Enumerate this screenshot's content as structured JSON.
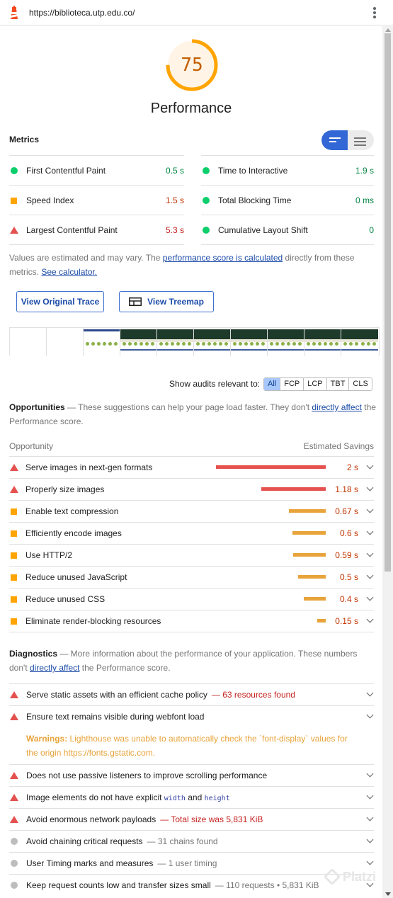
{
  "browser": {
    "url": "https://biblioteca.utp.edu.co/",
    "logo_icon": "lighthouse-icon",
    "menu_icon": "kebab-menu-icon"
  },
  "score": {
    "value": "75",
    "fraction": 0.75,
    "color": "#ffa400",
    "title": "Performance"
  },
  "metrics": {
    "heading": "Metrics",
    "left": [
      {
        "label": "First Contentful Paint",
        "value": "0.5 s",
        "status": "pass"
      },
      {
        "label": "Speed Index",
        "value": "1.5 s",
        "status": "average"
      },
      {
        "label": "Largest Contentful Paint",
        "value": "5.3 s",
        "status": "fail"
      }
    ],
    "right": [
      {
        "label": "Time to Interactive",
        "value": "1.9 s",
        "status": "pass"
      },
      {
        "label": "Total Blocking Time",
        "value": "0 ms",
        "status": "pass"
      },
      {
        "label": "Cumulative Layout Shift",
        "value": "0",
        "status": "pass"
      }
    ]
  },
  "note": {
    "text1": "Values are estimated and may vary. The ",
    "link1": "performance score is calculated",
    "text2": " directly from these metrics. ",
    "link2": "See calculator."
  },
  "buttons": {
    "trace": "View Original Trace",
    "treemap": "View Treemap"
  },
  "filter": {
    "label": "Show audits relevant to:",
    "chips": [
      "All",
      "FCP",
      "LCP",
      "TBT",
      "CLS"
    ],
    "active": "All"
  },
  "opportunities": {
    "title": "Opportunities",
    "desc1": " — These suggestions can help your page load faster. They don't ",
    "link": "directly affect",
    "desc2": " the Performance score.",
    "col_left": "Opportunity",
    "col_right": "Estimated Savings",
    "items": [
      {
        "label": "Serve images in next-gen formats",
        "savings": "2 s",
        "seconds": 2,
        "status": "fail"
      },
      {
        "label": "Properly size images",
        "savings": "1.18 s",
        "seconds": 1.18,
        "status": "fail"
      },
      {
        "label": "Enable text compression",
        "savings": "0.67 s",
        "seconds": 0.67,
        "status": "average"
      },
      {
        "label": "Efficiently encode images",
        "savings": "0.6 s",
        "seconds": 0.6,
        "status": "average"
      },
      {
        "label": "Use HTTP/2",
        "savings": "0.59 s",
        "seconds": 0.59,
        "status": "average"
      },
      {
        "label": "Reduce unused JavaScript",
        "savings": "0.5 s",
        "seconds": 0.5,
        "status": "average"
      },
      {
        "label": "Reduce unused CSS",
        "savings": "0.4 s",
        "seconds": 0.4,
        "status": "average"
      },
      {
        "label": "Eliminate render-blocking resources",
        "savings": "0.15 s",
        "seconds": 0.15,
        "status": "average"
      }
    ]
  },
  "diagnostics": {
    "title": "Diagnostics",
    "desc1": " — More information about the performance of your application. These numbers don't ",
    "link": "directly affect",
    "desc2": " the Performance score.",
    "items": [
      {
        "label": "Serve static assets with an efficient cache policy",
        "extra": "— 63 resources found",
        "status": "fail"
      },
      {
        "label": "Ensure text remains visible during webfont load",
        "status": "fail"
      },
      {
        "label": "Does not use passive listeners to improve scrolling performance",
        "status": "fail"
      },
      {
        "label": "Image elements do not have explicit ",
        "code1": "width",
        "and": " and ",
        "code2": "height",
        "status": "fail"
      },
      {
        "label": "Avoid enormous network payloads",
        "extra": "— Total size was 5,831 KiB",
        "status": "fail"
      },
      {
        "label": "Avoid chaining critical requests",
        "extra": "— 31 chains found",
        "status": "info"
      },
      {
        "label": "User Timing marks and measures",
        "extra": "— 1 user timing",
        "status": "info"
      },
      {
        "label": "Keep request counts low and transfer sizes small",
        "extra": "— 110 requests • 5,831 KiB",
        "status": "info"
      }
    ],
    "warning_label": "Warnings:",
    "warning_text": " Lighthouse was unable to automatically check the `font-display` values for the origin https://fonts.gstatic.com."
  },
  "watermark": "Platzi"
}
